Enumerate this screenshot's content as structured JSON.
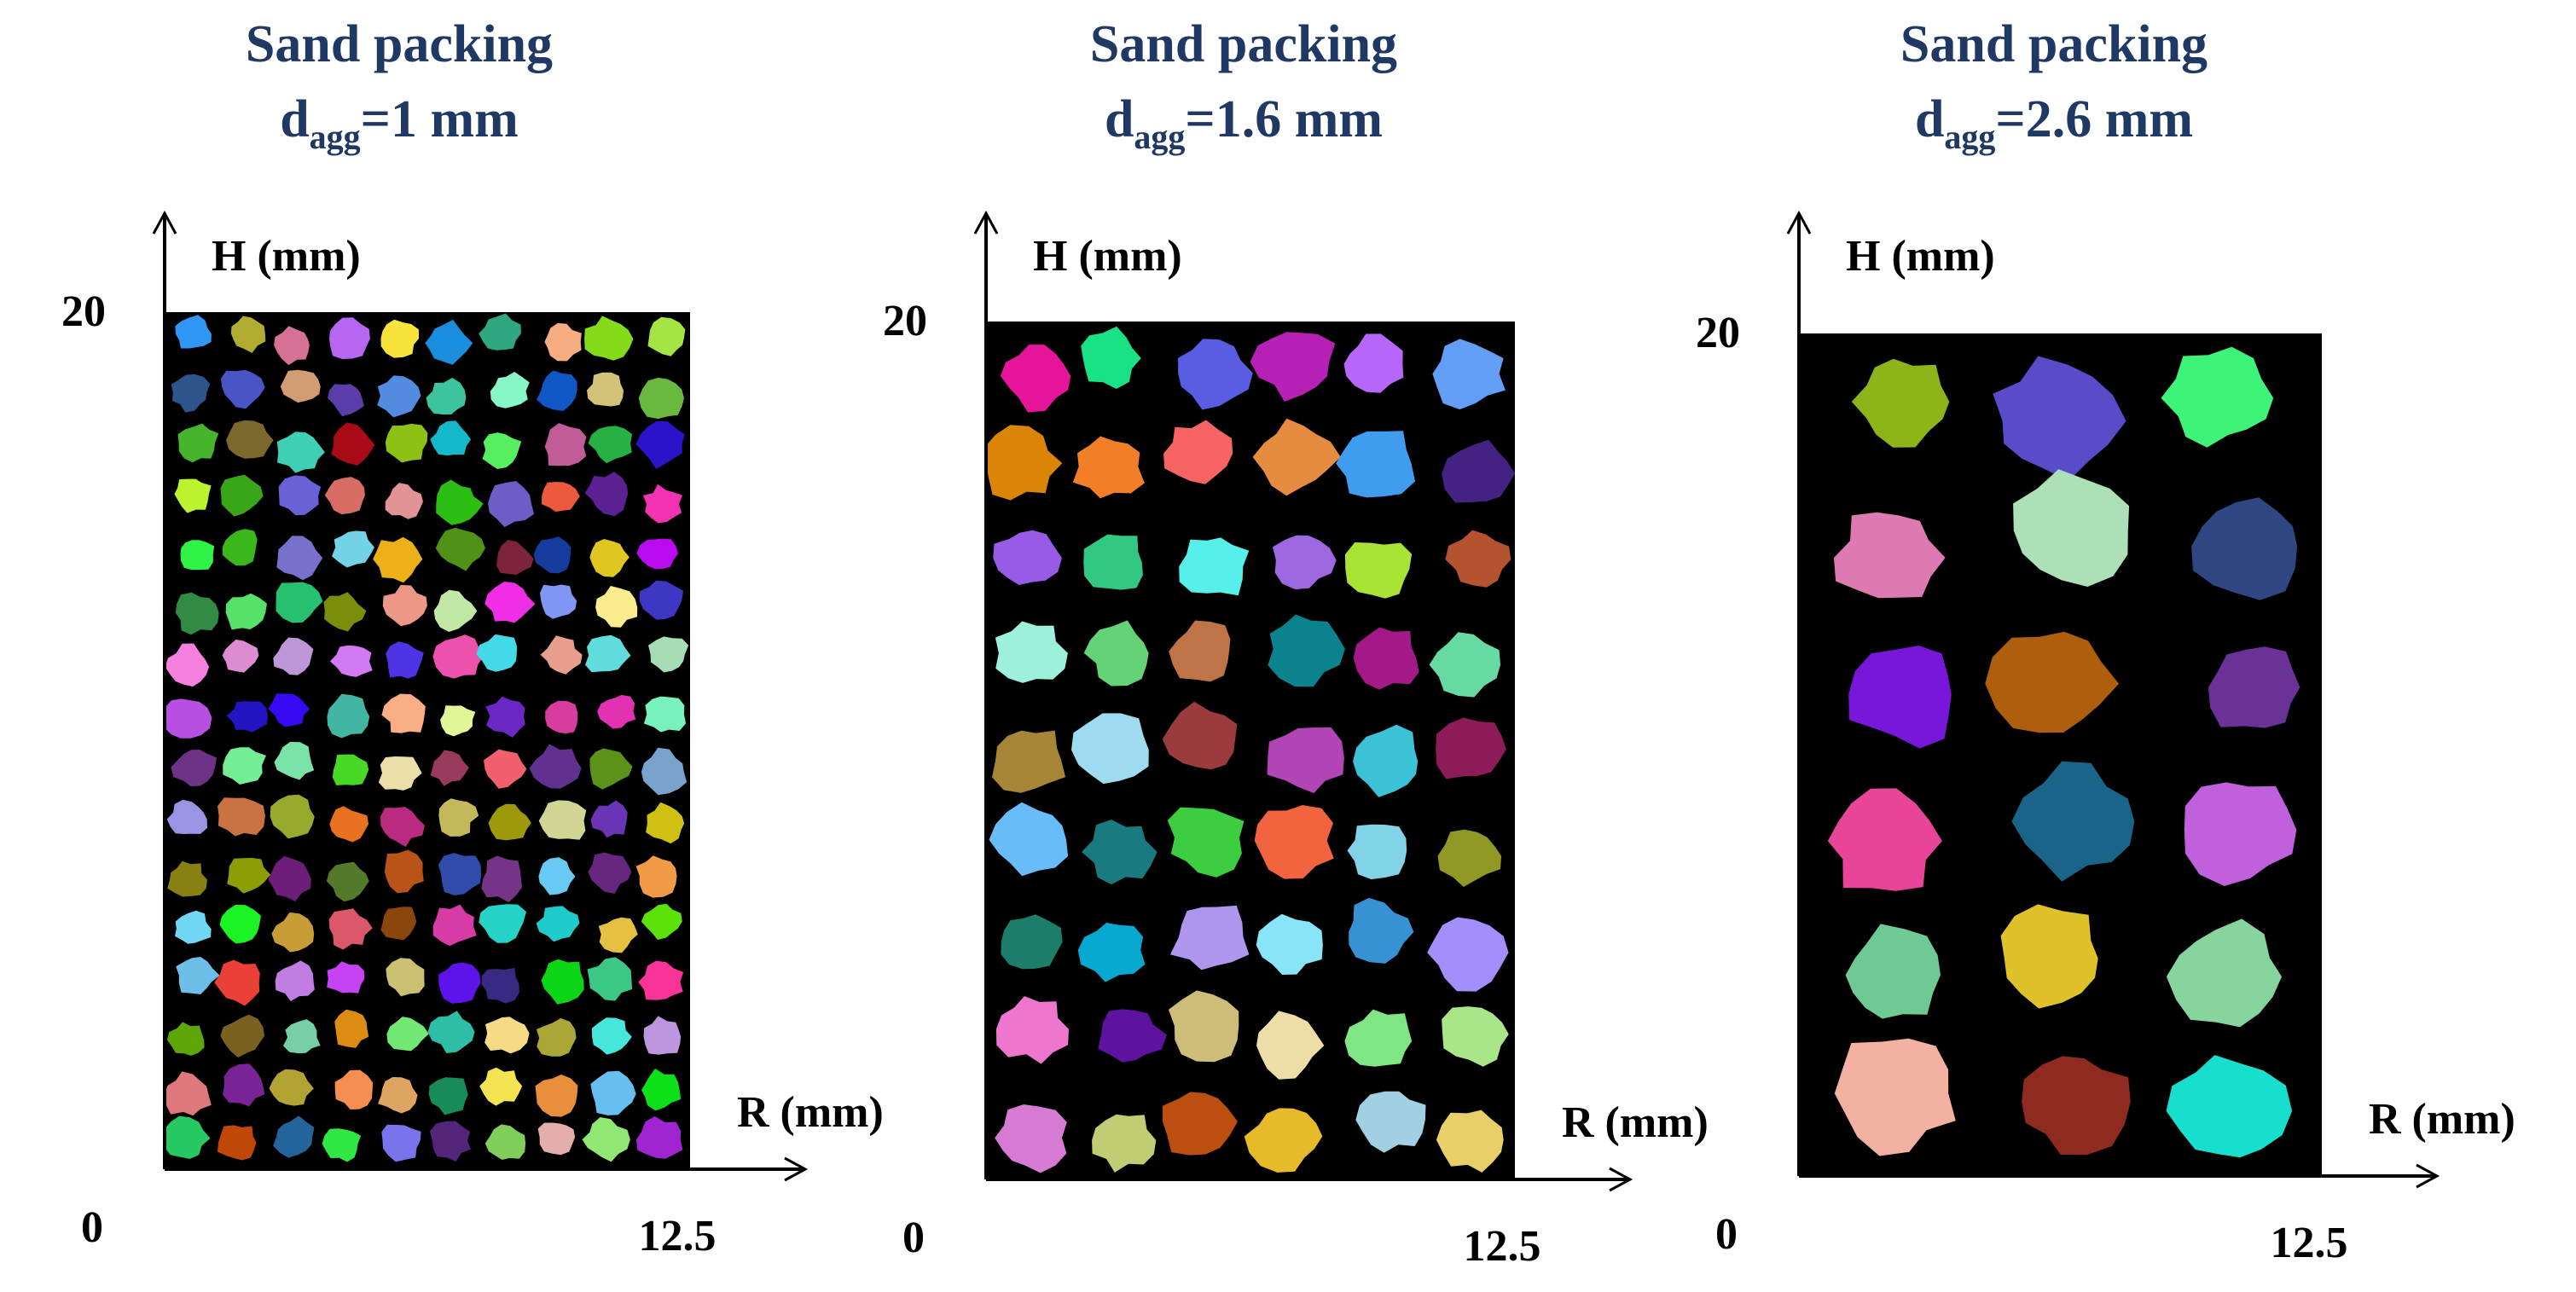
{
  "panels": [
    {
      "title": "Sand packing",
      "subtitle": {
        "symbol": "d",
        "subscript": "agg",
        "rest": "=1 mm"
      },
      "y_axis_label": "H (mm)",
      "x_axis_label": "R (mm)",
      "y_max": "20",
      "origin": "0",
      "x_max": "12.5"
    },
    {
      "title": "Sand packing",
      "subtitle": {
        "symbol": "d",
        "subscript": "agg",
        "rest": "=1.6 mm"
      },
      "y_axis_label": "H (mm)",
      "x_axis_label": "R (mm)",
      "y_max": "20",
      "origin": "0",
      "x_max": "12.5"
    },
    {
      "title": "Sand packing",
      "subtitle": {
        "symbol": "d",
        "subscript": "agg",
        "rest": "=2.6 mm"
      },
      "y_axis_label": "H (mm)",
      "x_axis_label": "R (mm)",
      "y_max": "20",
      "origin": "0",
      "x_max": "12.5"
    }
  ]
}
